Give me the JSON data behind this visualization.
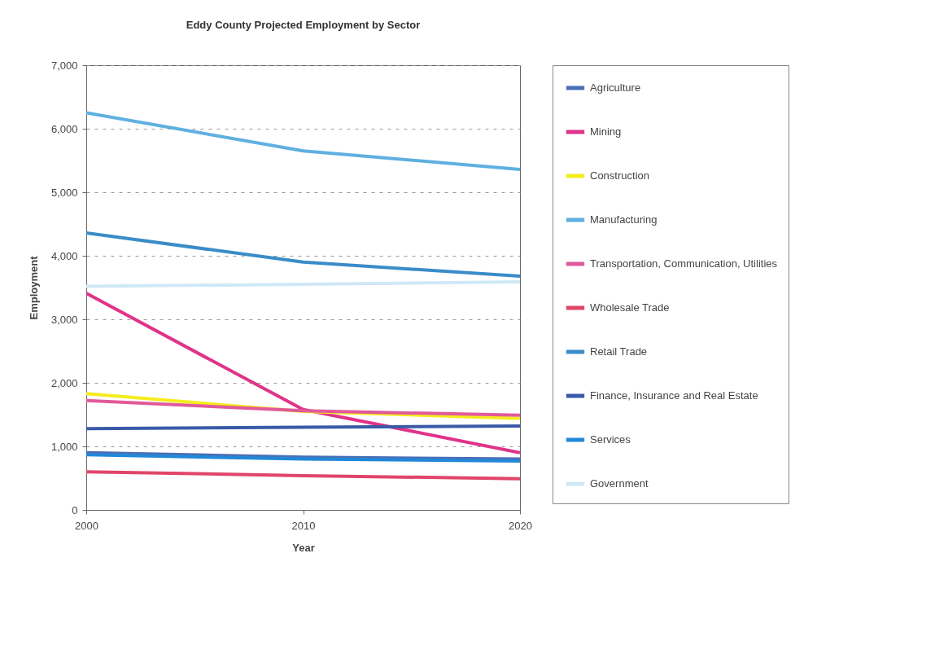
{
  "chart_data": {
    "type": "line",
    "title": "Eddy County Projected Employment by Sector",
    "xlabel": "Year",
    "ylabel": "Employment",
    "x": [
      2000,
      2010,
      2020
    ],
    "xlim": [
      2000,
      2020
    ],
    "xticks": [
      2000,
      2010,
      2020
    ],
    "ylim": [
      0,
      7000
    ],
    "yticks": [
      0,
      {
        "value": 1000,
        "label": "1,000"
      },
      {
        "value": 2000,
        "label": "2,000"
      },
      {
        "value": 3000,
        "label": "3,000"
      },
      {
        "value": 4000,
        "label": "4,000"
      },
      {
        "value": 5000,
        "label": "5,000"
      },
      {
        "value": 6000,
        "label": "6,000"
      },
      {
        "value": 7000,
        "label": "7,000"
      }
    ],
    "grid": "y",
    "legend": "right",
    "series": [
      {
        "name": "Agriculture",
        "color": "#4a6fb5",
        "values": [
          900,
          830,
          800
        ]
      },
      {
        "name": "Mining",
        "color": "#e0338a",
        "values": [
          3410,
          1580,
          900
        ]
      },
      {
        "name": "Construction",
        "color": "#f5ec1e",
        "values": [
          1830,
          1550,
          1440
        ]
      },
      {
        "name": "Manufacturing",
        "color": "#5fb0e0",
        "values": [
          6250,
          5650,
          5360
        ]
      },
      {
        "name": "Transportation, Communication, Utilities",
        "color": "#e05a9a",
        "values": [
          1720,
          1560,
          1490
        ]
      },
      {
        "name": "Wholesale Trade",
        "color": "#e0456a",
        "values": [
          600,
          540,
          490
        ]
      },
      {
        "name": "Retail Trade",
        "color": "#3a8cc8",
        "values": [
          4360,
          3900,
          3680
        ]
      },
      {
        "name": "Finance, Insurance and Real Estate",
        "color": "#3a5aa8",
        "values": [
          1280,
          1300,
          1320
        ]
      },
      {
        "name": "Services",
        "color": "#2288d8",
        "values": [
          870,
          800,
          770
        ]
      },
      {
        "name": "Government",
        "color": "#cfe8f5",
        "values": [
          3520,
          3550,
          3590
        ]
      }
    ]
  }
}
